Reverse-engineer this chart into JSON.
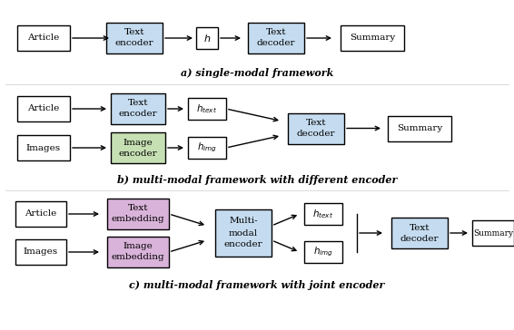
{
  "title_a": "a) single-modal framework",
  "title_b": "b) multi-modal framework with different encoder",
  "title_c": "c) multi-modal framework with joint encoder",
  "color_blue": "#C5DCF0",
  "color_green": "#C6E0B4",
  "color_purple": "#D9B3D9",
  "color_white": "#FFFFFF",
  "figsize": [
    5.66,
    3.64
  ],
  "dpi": 100
}
